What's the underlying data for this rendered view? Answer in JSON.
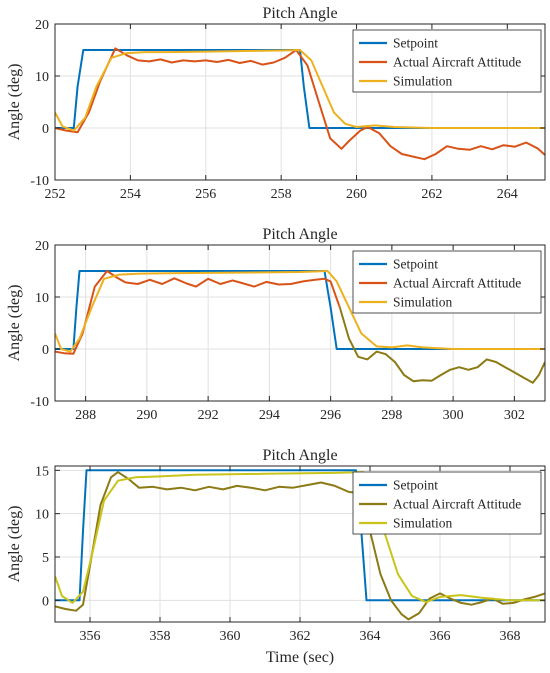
{
  "colors": {
    "setpoint": "#0072BD",
    "actual": "#D95319",
    "actual_olive": "#8C7A14",
    "simulation": "#EDB120"
  },
  "chart_data": [
    {
      "type": "line",
      "title": "Pitch Angle",
      "xlabel": "",
      "ylabel": "Angle (deg)",
      "xlim": [
        252,
        265
      ],
      "ylim": [
        -10,
        20
      ],
      "xticks": [
        252,
        254,
        256,
        258,
        260,
        262,
        264
      ],
      "yticks": [
        -10,
        0,
        10,
        20
      ],
      "grid": true,
      "legend_position": "top-right",
      "series": [
        {
          "name": "Setpoint",
          "color": "#0072BD",
          "x": [
            252,
            252.5,
            252.6,
            252.75,
            258.5,
            258.6,
            258.75,
            265
          ],
          "y": [
            0,
            0,
            8,
            15,
            15,
            8,
            0,
            0
          ]
        },
        {
          "name": "Actual Aircraft Attitude",
          "color": "#D95319",
          "x": [
            252,
            252.3,
            252.6,
            252.9,
            253.2,
            253.6,
            253.9,
            254.2,
            254.5,
            254.8,
            255.1,
            255.4,
            255.7,
            256.0,
            256.3,
            256.6,
            256.9,
            257.2,
            257.5,
            257.8,
            258.1,
            258.4,
            258.7,
            259.0,
            259.3,
            259.6,
            259.8,
            260.1,
            260.3,
            260.6,
            260.9,
            261.2,
            261.5,
            261.8,
            262.1,
            262.4,
            262.7,
            263.0,
            263.3,
            263.6,
            263.9,
            264.2,
            264.5,
            264.8,
            265.0
          ],
          "y": [
            0,
            -0.5,
            -0.8,
            3,
            9,
            15.3,
            14,
            13,
            12.8,
            13.2,
            12.6,
            13,
            12.8,
            13,
            12.7,
            13.1,
            12.5,
            12.9,
            12.2,
            12.6,
            13.5,
            15,
            12,
            5,
            -2,
            -4,
            -2.5,
            -0.5,
            0.2,
            -1,
            -3.5,
            -5,
            -5.5,
            -6,
            -5,
            -3.5,
            -4,
            -4.2,
            -3.5,
            -4.1,
            -3.3,
            -3.6,
            -2.8,
            -3.9,
            -5.2
          ]
        },
        {
          "name": "Simulation",
          "color": "#EDB120",
          "x": [
            252,
            252.2,
            252.5,
            252.8,
            253.1,
            253.5,
            253.9,
            254.4,
            255,
            256,
            257,
            258,
            258.5,
            258.8,
            259.1,
            259.4,
            259.7,
            260,
            260.5,
            261,
            262,
            263,
            264,
            265
          ],
          "y": [
            3,
            0.3,
            -0.5,
            2,
            8,
            13.5,
            14.4,
            14.6,
            14.6,
            14.7,
            14.8,
            14.9,
            15,
            13,
            8,
            3,
            0.8,
            0.2,
            0.5,
            0.2,
            0,
            0,
            0,
            0
          ]
        }
      ]
    },
    {
      "type": "line",
      "title": "Pitch Angle",
      "xlabel": "",
      "ylabel": "Angle (deg)",
      "xlim": [
        287,
        303
      ],
      "ylim": [
        -10,
        20
      ],
      "xticks": [
        288,
        290,
        292,
        294,
        296,
        298,
        300,
        302
      ],
      "yticks": [
        -10,
        0,
        10,
        20
      ],
      "grid": true,
      "legend_position": "top-right",
      "series": [
        {
          "name": "Setpoint",
          "color": "#0072BD",
          "x": [
            287,
            287.6,
            287.7,
            287.8,
            295.8,
            296.0,
            296.2,
            303
          ],
          "y": [
            0,
            0,
            8,
            15,
            15,
            8,
            0,
            0
          ]
        },
        {
          "name": "Actual Aircraft Attitude",
          "color": "#D95319",
          "color_after": "#8C7A14",
          "color_switch_x": 296.3,
          "x": [
            287,
            287.3,
            287.6,
            287.9,
            288.3,
            288.7,
            289.0,
            289.3,
            289.7,
            290.1,
            290.5,
            290.9,
            291.3,
            291.6,
            292.0,
            292.4,
            292.8,
            293.1,
            293.5,
            293.9,
            294.3,
            294.7,
            295.1,
            295.5,
            295.8,
            296.0,
            296.3,
            296.6,
            296.9,
            297.2,
            297.5,
            297.8,
            298.1,
            298.4,
            298.7,
            299.0,
            299.3,
            299.6,
            299.9,
            300.2,
            300.5,
            300.8,
            301.1,
            301.4,
            301.7,
            302.0,
            302.3,
            302.6,
            302.8,
            303.0
          ],
          "y": [
            -0.5,
            -0.8,
            -0.9,
            3,
            12,
            15,
            13.8,
            12.8,
            12.5,
            13.3,
            12.5,
            13.6,
            12.6,
            12,
            13.5,
            12.5,
            13.2,
            12.7,
            12,
            12.9,
            12.4,
            12.5,
            13,
            13.3,
            13.5,
            13,
            8,
            2,
            -1.5,
            -2,
            -0.5,
            -1,
            -2.5,
            -5,
            -6.2,
            -6,
            -6.1,
            -5,
            -4,
            -3.5,
            -4,
            -3.5,
            -2,
            -2.5,
            -3.5,
            -4.5,
            -5.5,
            -6.5,
            -5,
            -2.5
          ]
        },
        {
          "name": "Simulation",
          "color": "#EDB120",
          "x": [
            287,
            287.2,
            287.5,
            287.8,
            288.2,
            288.6,
            289.1,
            289.8,
            291,
            293,
            295,
            295.9,
            296.2,
            296.6,
            297.0,
            297.5,
            298,
            298.5,
            299,
            300,
            301,
            302,
            303
          ],
          "y": [
            3,
            0,
            -0.5,
            2,
            8,
            13.5,
            14.3,
            14.5,
            14.6,
            14.7,
            14.8,
            15,
            13,
            8,
            3,
            0.5,
            0.3,
            0.7,
            0.3,
            0,
            0,
            0,
            0
          ]
        }
      ]
    },
    {
      "type": "line",
      "title": "Pitch Angle",
      "xlabel": "Time (sec)",
      "ylabel": "Angle (deg)",
      "xlim": [
        355,
        369
      ],
      "ylim": [
        -2.5,
        15.5
      ],
      "xticks": [
        356,
        358,
        360,
        362,
        364,
        366,
        368
      ],
      "yticks": [
        0,
        5,
        10,
        15
      ],
      "grid": true,
      "legend_position": "top-right",
      "series": [
        {
          "name": "Setpoint",
          "color": "#0072BD",
          "x": [
            355,
            355.7,
            355.8,
            355.9,
            363.6,
            363.75,
            363.9,
            369
          ],
          "y": [
            0,
            0,
            8,
            15,
            15,
            8,
            0,
            0
          ]
        },
        {
          "name": "Actual Aircraft Attitude",
          "color": "#8C7A14",
          "x": [
            355,
            355.3,
            355.6,
            355.8,
            356.0,
            356.3,
            356.6,
            356.8,
            357.1,
            357.4,
            357.8,
            358.2,
            358.6,
            359.0,
            359.4,
            359.8,
            360.2,
            360.6,
            361.0,
            361.4,
            361.8,
            362.2,
            362.6,
            363.0,
            363.4,
            363.7,
            364.0,
            364.3,
            364.6,
            364.9,
            365.1,
            365.4,
            365.7,
            366.0,
            366.3,
            366.6,
            366.9,
            367.2,
            367.5,
            367.8,
            368.1,
            368.4,
            368.7,
            369.0
          ],
          "y": [
            -0.7,
            -1,
            -1.2,
            -0.5,
            4,
            11,
            14.2,
            14.8,
            14,
            13,
            13.1,
            12.8,
            13,
            12.7,
            13.1,
            12.8,
            13.2,
            13,
            12.7,
            13.1,
            13,
            13.3,
            13.6,
            13.2,
            12.5,
            12.4,
            8,
            3,
            0,
            -1.6,
            -2.2,
            -1.5,
            0.2,
            0.8,
            0.2,
            -0.3,
            -0.5,
            -0.2,
            0.2,
            -0.4,
            -0.3,
            0.1,
            0.4,
            0.8
          ]
        },
        {
          "name": "Simulation",
          "color": "#C8C41A",
          "x": [
            355,
            355.2,
            355.5,
            355.8,
            356.1,
            356.4,
            356.8,
            357.3,
            358,
            359,
            361,
            363,
            363.8,
            364.1,
            364.4,
            364.8,
            365.2,
            365.6,
            366,
            366.6,
            367.2,
            368,
            369
          ],
          "y": [
            2.8,
            0.5,
            -0.3,
            1,
            6,
            11.5,
            13.8,
            14.2,
            14.3,
            14.5,
            14.6,
            14.7,
            14.8,
            13,
            8,
            3,
            0.5,
            -0.2,
            0.4,
            0.6,
            0.3,
            0,
            0
          ]
        }
      ]
    }
  ]
}
